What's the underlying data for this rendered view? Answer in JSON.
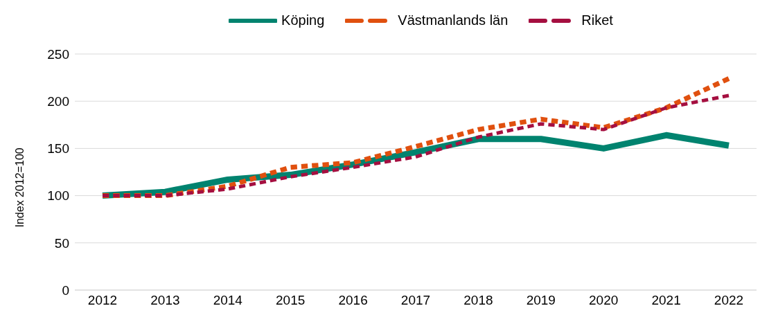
{
  "chart_data": {
    "type": "line",
    "ylabel": "Index 2012=100",
    "categories": [
      "2012",
      "2013",
      "2014",
      "2015",
      "2016",
      "2017",
      "2018",
      "2019",
      "2020",
      "2021",
      "2022"
    ],
    "series": [
      {
        "name": "Köping",
        "color": "#00836f",
        "line_style": "solid",
        "values": [
          100,
          104,
          117,
          122,
          133,
          146,
          160,
          160,
          150,
          164,
          153
        ]
      },
      {
        "name": "Västmanlands län",
        "color": "#e0500f",
        "line_style": "dashed",
        "values": [
          100,
          100,
          110,
          130,
          135,
          152,
          170,
          181,
          172,
          193,
          224
        ]
      },
      {
        "name": "Riket",
        "color": "#a50f40",
        "line_style": "dashed",
        "values": [
          100,
          100,
          107,
          120,
          130,
          141,
          162,
          176,
          170,
          193,
          206
        ]
      }
    ],
    "ylim": [
      0,
      250
    ],
    "yticks": [
      0,
      50,
      100,
      150,
      200,
      250
    ],
    "grid": "y",
    "legend": "top",
    "marker": "none"
  }
}
